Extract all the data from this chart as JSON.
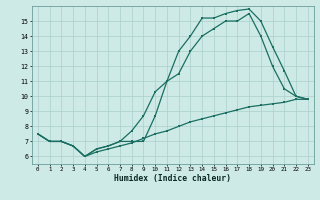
{
  "xlabel": "Humidex (Indice chaleur)",
  "bg_color": "#ceeae6",
  "grid_color": "#aacfcb",
  "line_color": "#1a6e62",
  "line1_x": [
    0,
    1,
    2,
    3,
    4,
    5,
    6,
    7,
    8,
    9,
    10,
    11,
    12,
    13,
    14,
    15,
    16,
    17,
    18,
    19,
    20,
    21,
    22,
    23
  ],
  "line1_y": [
    7.5,
    7.0,
    7.0,
    6.7,
    6.0,
    6.5,
    6.7,
    7.0,
    7.0,
    7.0,
    8.7,
    11.0,
    13.0,
    14.0,
    15.2,
    15.2,
    15.5,
    15.7,
    15.8,
    15.0,
    13.3,
    11.7,
    10.0,
    9.8
  ],
  "line2_x": [
    0,
    1,
    2,
    3,
    4,
    5,
    6,
    7,
    8,
    9,
    10,
    11,
    12,
    13,
    14,
    15,
    16,
    17,
    18,
    19,
    20,
    21,
    22,
    23
  ],
  "line2_y": [
    7.5,
    7.0,
    7.0,
    6.7,
    6.0,
    6.5,
    6.7,
    7.0,
    7.7,
    8.7,
    10.3,
    11.0,
    11.5,
    13.0,
    14.0,
    14.5,
    15.0,
    15.0,
    15.5,
    14.0,
    12.0,
    10.5,
    10.0,
    9.8
  ],
  "line3_x": [
    0,
    1,
    2,
    3,
    4,
    5,
    6,
    7,
    8,
    9,
    10,
    11,
    12,
    13,
    14,
    15,
    16,
    17,
    18,
    19,
    20,
    21,
    22,
    23
  ],
  "line3_y": [
    7.5,
    7.0,
    7.0,
    6.7,
    6.0,
    6.3,
    6.5,
    6.7,
    6.9,
    7.2,
    7.5,
    7.7,
    8.0,
    8.3,
    8.5,
    8.7,
    8.9,
    9.1,
    9.3,
    9.4,
    9.5,
    9.6,
    9.8,
    9.8
  ],
  "ylim": [
    5.5,
    16.0
  ],
  "xlim": [
    -0.5,
    23.5
  ],
  "yticks": [
    6,
    7,
    8,
    9,
    10,
    11,
    12,
    13,
    14,
    15
  ],
  "xticks": [
    0,
    1,
    2,
    3,
    4,
    5,
    6,
    7,
    8,
    9,
    10,
    11,
    12,
    13,
    14,
    15,
    16,
    17,
    18,
    19,
    20,
    21,
    22,
    23
  ]
}
